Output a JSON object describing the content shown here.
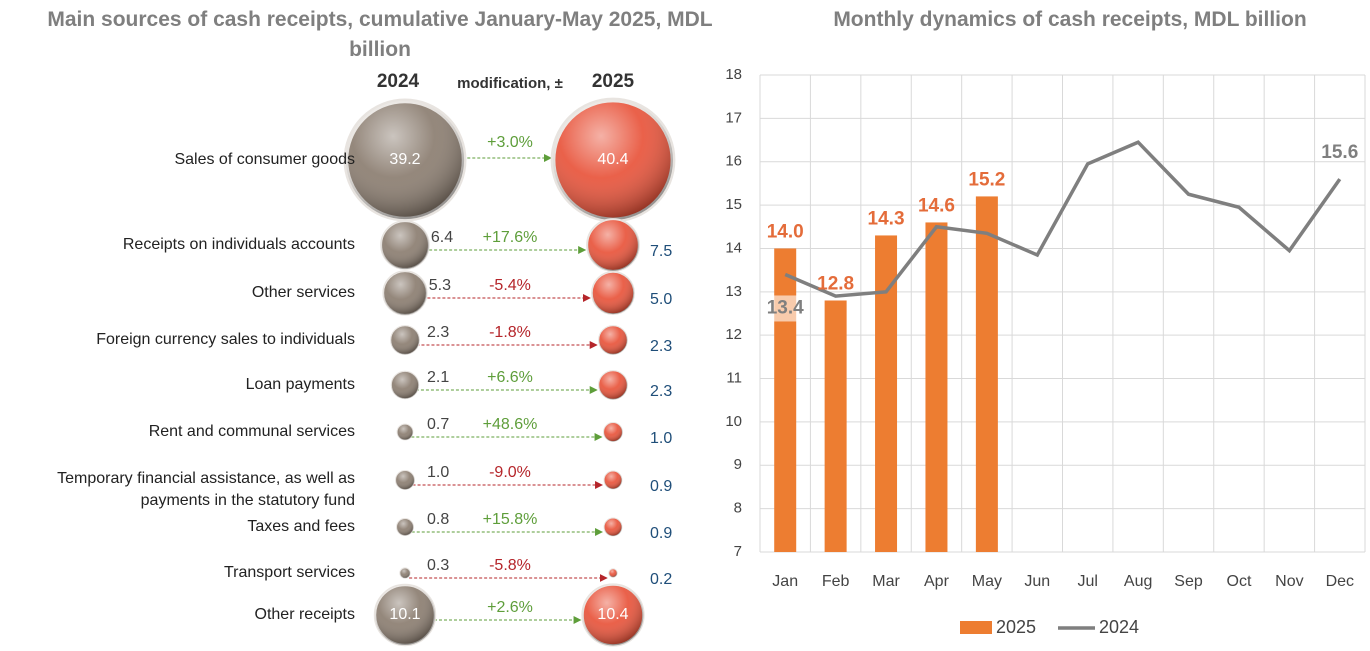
{
  "chart_data": [
    {
      "type": "bubble",
      "title": "Main sources of cash receipts, cumulative January-May 2025,  MDL billion",
      "categories": [
        "Sales of consumer goods",
        "Receipts on individuals accounts",
        "Other services",
        "Foreign currency sales to individuals",
        "Loan payments",
        "Rent and communal services",
        "Temporary financial assistance, as well as payments in the statutory fund",
        "Taxes and fees",
        "Transport services",
        "Other receipts"
      ],
      "series": [
        {
          "name": "2024",
          "color": "#8b7d70",
          "values": [
            39.2,
            6.4,
            5.3,
            2.3,
            2.1,
            0.7,
            1.0,
            0.8,
            0.3,
            10.1
          ],
          "value_labels": [
            "39.2",
            "6.4",
            "5.3",
            "2.3",
            "2.1",
            "0.7",
            "1.0",
            "0.8",
            "0.3",
            "10.1"
          ]
        },
        {
          "name": "2025",
          "color": "#e8533a",
          "values": [
            40.4,
            7.5,
            5.0,
            2.3,
            2.3,
            1.0,
            0.9,
            0.9,
            0.2,
            10.4
          ],
          "value_labels": [
            "40.4",
            "7.5",
            "5.0",
            "2.3",
            "2.3",
            "1.0",
            "0.9",
            "0.9",
            "0.2",
            "10.4"
          ]
        }
      ],
      "change": {
        "name": "modification, ±",
        "values": [
          3.0,
          17.6,
          -5.4,
          -1.8,
          6.6,
          48.6,
          -9.0,
          15.8,
          -5.8,
          2.6
        ],
        "value_labels": [
          "+3.0%",
          "+17.6%",
          "-5.4%",
          "-1.8%",
          "+6.6%",
          "+48.6%",
          "-9.0%",
          "+15.8%",
          "-5.8%",
          "+2.6%"
        ],
        "positive_color": "#5e9e3a",
        "negative_color": "#b5252a"
      }
    },
    {
      "type": "bar_line",
      "title": "Monthly dynamics of cash receipts, MDL billion",
      "categories": [
        "Jan",
        "Feb",
        "Mar",
        "Apr",
        "May",
        "Jun",
        "Jul",
        "Aug",
        "Sep",
        "Oct",
        "Nov",
        "Dec"
      ],
      "series": [
        {
          "name": "2025",
          "type": "bar",
          "color": "#ed7d31",
          "values": [
            14.0,
            12.8,
            14.3,
            14.6,
            15.2,
            null,
            null,
            null,
            null,
            null,
            null,
            null
          ],
          "value_labels": [
            "14.0",
            "12.8",
            "14.3",
            "14.6",
            "15.2",
            null,
            null,
            null,
            null,
            null,
            null,
            null
          ]
        },
        {
          "name": "2024",
          "type": "line",
          "color": "#7f7f7f",
          "values": [
            13.4,
            12.9,
            13.0,
            14.5,
            14.35,
            13.85,
            15.95,
            16.45,
            15.25,
            14.95,
            13.95,
            15.6
          ],
          "value_labels": [
            "13.4",
            null,
            null,
            null,
            null,
            null,
            null,
            null,
            null,
            null,
            null,
            "15.6"
          ]
        }
      ],
      "ylim": [
        7,
        18
      ],
      "yticks": [
        7,
        8,
        9,
        10,
        11,
        12,
        13,
        14,
        15,
        16,
        17,
        18
      ],
      "grid": true,
      "legend": "bottom"
    }
  ]
}
